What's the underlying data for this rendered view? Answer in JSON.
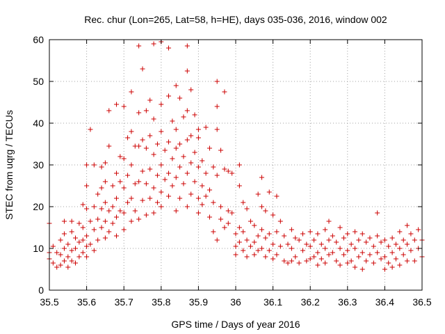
{
  "chart_data": {
    "type": "scatter",
    "title": "Rec. chur (Lon=265, Lat=58, h=HE), days 035-036, 2016, window 002",
    "xlabel": "GPS time / Days of year 2016",
    "ylabel": "STEC from uqrg / TECUs",
    "xlim": [
      35.5,
      36.5
    ],
    "ylim": [
      0,
      60
    ],
    "xticks": [
      "35.5",
      "35.6",
      "35.7",
      "35.8",
      "35.9",
      "36",
      "36.1",
      "36.2",
      "36.3",
      "36.4",
      "36.5"
    ],
    "yticks": [
      "0",
      "10",
      "20",
      "30",
      "40",
      "50",
      "60"
    ],
    "grid": true,
    "marker": "plus",
    "color": "#cc0000",
    "points": [
      [
        35.5,
        16.0
      ],
      [
        35.5,
        9.0
      ],
      [
        35.5,
        7.5
      ],
      [
        35.51,
        10.5
      ],
      [
        35.51,
        6.5
      ],
      [
        35.52,
        9.0
      ],
      [
        35.52,
        5.5
      ],
      [
        35.53,
        12.0
      ],
      [
        35.53,
        8.5
      ],
      [
        35.53,
        6.0
      ],
      [
        35.54,
        16.5
      ],
      [
        35.54,
        13.5
      ],
      [
        35.54,
        10.0
      ],
      [
        35.54,
        7.0
      ],
      [
        35.55,
        11.0
      ],
      [
        35.55,
        8.0
      ],
      [
        35.55,
        5.5
      ],
      [
        35.56,
        16.5
      ],
      [
        35.56,
        14.0
      ],
      [
        35.56,
        9.5
      ],
      [
        35.56,
        7.0
      ],
      [
        35.57,
        12.5
      ],
      [
        35.57,
        10.0
      ],
      [
        35.57,
        6.5
      ],
      [
        35.58,
        16.0
      ],
      [
        35.58,
        11.5
      ],
      [
        35.58,
        8.0
      ],
      [
        35.59,
        20.5
      ],
      [
        35.59,
        15.0
      ],
      [
        35.59,
        12.0
      ],
      [
        35.59,
        9.0
      ],
      [
        35.6,
        30.0
      ],
      [
        35.6,
        25.0
      ],
      [
        35.6,
        19.5
      ],
      [
        35.6,
        13.0
      ],
      [
        35.6,
        10.5
      ],
      [
        35.6,
        8.0
      ],
      [
        35.61,
        38.5
      ],
      [
        35.61,
        16.5
      ],
      [
        35.61,
        11.0
      ],
      [
        35.62,
        30.0
      ],
      [
        35.62,
        20.0
      ],
      [
        35.62,
        14.5
      ],
      [
        35.62,
        9.5
      ],
      [
        35.63,
        23.0
      ],
      [
        35.63,
        17.0
      ],
      [
        35.63,
        12.0
      ],
      [
        35.64,
        29.5
      ],
      [
        35.64,
        24.5
      ],
      [
        35.64,
        19.5
      ],
      [
        35.64,
        15.0
      ],
      [
        35.65,
        30.5
      ],
      [
        35.65,
        26.0
      ],
      [
        35.65,
        21.0
      ],
      [
        35.65,
        16.5
      ],
      [
        35.65,
        12.5
      ],
      [
        35.66,
        34.5
      ],
      [
        35.66,
        43.0
      ],
      [
        35.66,
        19.0
      ],
      [
        35.66,
        14.0
      ],
      [
        35.67,
        25.0
      ],
      [
        35.67,
        20.0
      ],
      [
        35.67,
        16.0
      ],
      [
        35.68,
        44.5
      ],
      [
        35.68,
        28.0
      ],
      [
        35.68,
        22.0
      ],
      [
        35.68,
        17.5
      ],
      [
        35.68,
        13.0
      ],
      [
        35.69,
        32.0
      ],
      [
        35.69,
        26.0
      ],
      [
        35.69,
        19.0
      ],
      [
        35.7,
        44.0
      ],
      [
        35.7,
        31.5
      ],
      [
        35.7,
        24.5
      ],
      [
        35.7,
        18.5
      ],
      [
        35.7,
        14.5
      ],
      [
        35.71,
        36.5
      ],
      [
        35.71,
        27.5
      ],
      [
        35.71,
        21.0
      ],
      [
        35.72,
        47.5
      ],
      [
        35.72,
        38.0
      ],
      [
        35.72,
        30.0
      ],
      [
        35.72,
        22.0
      ],
      [
        35.72,
        16.5
      ],
      [
        35.73,
        34.5
      ],
      [
        35.73,
        25.5
      ],
      [
        35.73,
        19.0
      ],
      [
        35.74,
        58.5
      ],
      [
        35.74,
        42.5
      ],
      [
        35.74,
        34.5
      ],
      [
        35.74,
        26.0
      ],
      [
        35.74,
        17.0
      ],
      [
        35.75,
        53.0
      ],
      [
        35.75,
        36.0
      ],
      [
        35.75,
        28.5
      ],
      [
        35.75,
        21.5
      ],
      [
        35.76,
        43.0
      ],
      [
        35.76,
        34.0
      ],
      [
        35.76,
        25.5
      ],
      [
        35.76,
        18.0
      ],
      [
        35.77,
        45.5
      ],
      [
        35.77,
        37.0
      ],
      [
        35.77,
        29.0
      ],
      [
        35.77,
        22.0
      ],
      [
        35.78,
        59.0
      ],
      [
        35.78,
        41.0
      ],
      [
        35.78,
        32.5
      ],
      [
        35.78,
        24.5
      ],
      [
        35.78,
        18.5
      ],
      [
        35.79,
        35.0
      ],
      [
        35.79,
        27.5
      ],
      [
        35.79,
        21.0
      ],
      [
        35.8,
        59.5
      ],
      [
        35.8,
        44.5
      ],
      [
        35.8,
        38.0
      ],
      [
        35.8,
        30.0
      ],
      [
        35.8,
        23.5
      ],
      [
        35.8,
        20.0
      ],
      [
        35.81,
        33.5
      ],
      [
        35.81,
        26.5
      ],
      [
        35.82,
        58.0
      ],
      [
        35.82,
        46.5
      ],
      [
        35.82,
        35.5
      ],
      [
        35.82,
        28.0
      ],
      [
        35.82,
        22.5
      ],
      [
        35.83,
        40.5
      ],
      [
        35.83,
        31.5
      ],
      [
        35.83,
        25.0
      ],
      [
        35.84,
        49.0
      ],
      [
        35.84,
        38.5
      ],
      [
        35.84,
        34.0
      ],
      [
        35.84,
        27.0
      ],
      [
        35.84,
        19.0
      ],
      [
        35.85,
        46.0
      ],
      [
        35.85,
        35.0
      ],
      [
        35.85,
        29.5
      ],
      [
        35.85,
        22.0
      ],
      [
        35.86,
        41.5
      ],
      [
        35.86,
        32.0
      ],
      [
        35.86,
        25.5
      ],
      [
        35.87,
        58.5
      ],
      [
        35.87,
        52.5
      ],
      [
        35.87,
        43.0
      ],
      [
        35.87,
        36.0
      ],
      [
        35.87,
        28.0
      ],
      [
        35.87,
        20.0
      ],
      [
        35.88,
        48.0
      ],
      [
        35.88,
        37.0
      ],
      [
        35.88,
        30.5
      ],
      [
        35.88,
        23.0
      ],
      [
        35.89,
        42.0
      ],
      [
        35.89,
        33.0
      ],
      [
        35.89,
        26.0
      ],
      [
        35.9,
        38.5
      ],
      [
        35.9,
        36.5
      ],
      [
        35.9,
        29.5
      ],
      [
        35.9,
        22.0
      ],
      [
        35.9,
        18.5
      ],
      [
        35.91,
        31.0
      ],
      [
        35.91,
        25.0
      ],
      [
        35.91,
        20.5
      ],
      [
        35.92,
        39.0
      ],
      [
        35.92,
        28.0
      ],
      [
        35.92,
        22.5
      ],
      [
        35.93,
        34.0
      ],
      [
        35.93,
        24.0
      ],
      [
        35.93,
        17.5
      ],
      [
        35.94,
        29.5
      ],
      [
        35.94,
        21.0
      ],
      [
        35.94,
        14.0
      ],
      [
        35.95,
        50.0
      ],
      [
        35.95,
        44.0
      ],
      [
        35.95,
        38.5
      ],
      [
        35.95,
        27.5
      ],
      [
        35.95,
        12.0
      ],
      [
        35.96,
        33.5
      ],
      [
        35.96,
        20.0
      ],
      [
        35.96,
        17.0
      ],
      [
        35.97,
        47.5
      ],
      [
        35.97,
        29.0
      ],
      [
        35.97,
        15.0
      ],
      [
        35.98,
        28.5
      ],
      [
        35.98,
        19.0
      ],
      [
        35.98,
        16.0
      ],
      [
        35.99,
        28.0
      ],
      [
        35.99,
        18.5
      ],
      [
        36.0,
        13.5
      ],
      [
        36.0,
        10.5
      ],
      [
        36.0,
        8.5
      ],
      [
        36.01,
        30.0
      ],
      [
        36.01,
        25.0
      ],
      [
        36.01,
        15.0
      ],
      [
        36.01,
        11.5
      ],
      [
        36.02,
        21.0
      ],
      [
        36.02,
        14.0
      ],
      [
        36.02,
        9.5
      ],
      [
        36.03,
        19.5
      ],
      [
        36.03,
        12.0
      ],
      [
        36.03,
        8.0
      ],
      [
        36.04,
        16.5
      ],
      [
        36.04,
        10.5
      ],
      [
        36.05,
        15.5
      ],
      [
        36.05,
        11.5
      ],
      [
        36.05,
        8.5
      ],
      [
        36.06,
        23.0
      ],
      [
        36.06,
        13.0
      ],
      [
        36.06,
        9.5
      ],
      [
        36.07,
        27.0
      ],
      [
        36.07,
        20.0
      ],
      [
        36.07,
        14.5
      ],
      [
        36.07,
        10.0
      ],
      [
        36.08,
        19.0
      ],
      [
        36.08,
        12.5
      ],
      [
        36.08,
        8.0
      ],
      [
        36.09,
        23.5
      ],
      [
        36.09,
        13.5
      ],
      [
        36.09,
        9.5
      ],
      [
        36.1,
        18.0
      ],
      [
        36.1,
        11.0
      ],
      [
        36.1,
        7.5
      ],
      [
        36.11,
        22.5
      ],
      [
        36.11,
        14.0
      ],
      [
        36.11,
        8.5
      ],
      [
        36.12,
        16.5
      ],
      [
        36.12,
        10.5
      ],
      [
        36.13,
        13.0
      ],
      [
        36.13,
        7.0
      ],
      [
        36.14,
        11.0
      ],
      [
        36.14,
        6.5
      ],
      [
        36.15,
        14.5
      ],
      [
        36.15,
        10.0
      ],
      [
        36.15,
        7.0
      ],
      [
        36.16,
        12.5
      ],
      [
        36.16,
        8.0
      ],
      [
        36.17,
        12.0
      ],
      [
        36.17,
        6.5
      ],
      [
        36.18,
        13.5
      ],
      [
        36.18,
        9.5
      ],
      [
        36.19,
        11.0
      ],
      [
        36.19,
        7.0
      ],
      [
        36.2,
        14.0
      ],
      [
        36.2,
        10.5
      ],
      [
        36.2,
        7.5
      ],
      [
        36.21,
        12.0
      ],
      [
        36.21,
        8.0
      ],
      [
        36.22,
        13.5
      ],
      [
        36.22,
        9.0
      ],
      [
        36.22,
        6.0
      ],
      [
        36.23,
        11.0
      ],
      [
        36.23,
        7.5
      ],
      [
        36.24,
        14.5
      ],
      [
        36.24,
        10.0
      ],
      [
        36.24,
        6.5
      ],
      [
        36.25,
        16.5
      ],
      [
        36.25,
        12.0
      ],
      [
        36.25,
        8.5
      ],
      [
        36.26,
        13.0
      ],
      [
        36.26,
        9.0
      ],
      [
        36.27,
        11.5
      ],
      [
        36.27,
        7.0
      ],
      [
        36.28,
        15.0
      ],
      [
        36.28,
        10.0
      ],
      [
        36.28,
        6.0
      ],
      [
        36.29,
        12.5
      ],
      [
        36.29,
        8.5
      ],
      [
        36.3,
        13.5
      ],
      [
        36.3,
        9.5
      ],
      [
        36.3,
        6.5
      ],
      [
        36.31,
        11.0
      ],
      [
        36.31,
        7.0
      ],
      [
        36.32,
        14.0
      ],
      [
        36.32,
        10.0
      ],
      [
        36.32,
        5.5
      ],
      [
        36.33,
        12.0
      ],
      [
        36.33,
        8.0
      ],
      [
        36.34,
        13.5
      ],
      [
        36.34,
        9.0
      ],
      [
        36.34,
        5.0
      ],
      [
        36.35,
        11.5
      ],
      [
        36.35,
        7.0
      ],
      [
        36.36,
        12.5
      ],
      [
        36.36,
        8.5
      ],
      [
        36.37,
        10.5
      ],
      [
        36.37,
        6.5
      ],
      [
        36.38,
        18.5
      ],
      [
        36.38,
        13.0
      ],
      [
        36.38,
        9.0
      ],
      [
        36.39,
        11.5
      ],
      [
        36.39,
        7.5
      ],
      [
        36.4,
        12.0
      ],
      [
        36.4,
        8.0
      ],
      [
        36.4,
        5.0
      ],
      [
        36.41,
        10.5
      ],
      [
        36.41,
        6.5
      ],
      [
        36.42,
        12.5
      ],
      [
        36.42,
        9.0
      ],
      [
        36.42,
        5.5
      ],
      [
        36.43,
        11.0
      ],
      [
        36.43,
        7.5
      ],
      [
        36.44,
        14.0
      ],
      [
        36.44,
        10.0
      ],
      [
        36.44,
        6.0
      ],
      [
        36.45,
        12.0
      ],
      [
        36.45,
        8.5
      ],
      [
        36.46,
        15.5
      ],
      [
        36.46,
        11.0
      ],
      [
        36.46,
        7.0
      ],
      [
        36.47,
        13.5
      ],
      [
        36.47,
        9.5
      ],
      [
        36.48,
        12.0
      ],
      [
        36.48,
        7.0
      ],
      [
        36.49,
        14.5
      ],
      [
        36.49,
        10.0
      ],
      [
        36.5,
        12.0
      ],
      [
        36.5,
        8.0
      ]
    ]
  }
}
